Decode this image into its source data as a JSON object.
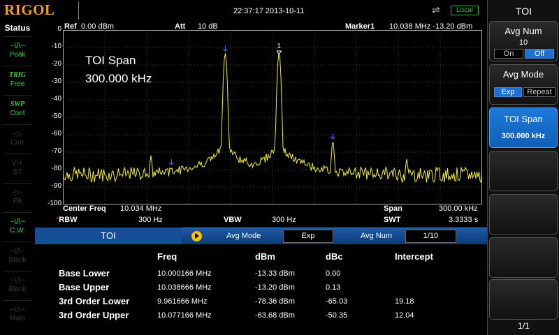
{
  "header": {
    "logo": "RIGOL",
    "datetime": "22:37:17  2013-10-11",
    "usb_icon": "usb-icon",
    "local_badge": "Local"
  },
  "status_panel": {
    "title": "Status",
    "items": [
      {
        "icon": "~\\/\\~",
        "label": "Peak",
        "state": "on"
      },
      {
        "icon": "TRIG",
        "label": "Free",
        "state": "on"
      },
      {
        "icon": "SWP",
        "label": "Cont",
        "state": "on"
      },
      {
        "icon": "-◇-",
        "label": "Corr",
        "state": "off"
      },
      {
        "icon": "\\/\\+",
        "label": "ST",
        "state": "off"
      },
      {
        "icon": "-▷-",
        "label": "PA",
        "state": "off"
      },
      {
        "icon": "~\\/\\~",
        "label": "C.W.",
        "state": "on"
      },
      {
        "icon": "~\\/\\~",
        "label": "Blank",
        "state": "off"
      },
      {
        "icon": "~\\/\\~",
        "label": "Blank",
        "state": "off"
      },
      {
        "icon": "~\\/\\~",
        "label": "Math",
        "state": "off"
      }
    ]
  },
  "display": {
    "ref_label": "Ref",
    "ref_value": "0.00 dBm",
    "att_label": "Att",
    "att_value": "10 dB",
    "marker_label": "Marker1",
    "marker_value": "10.038 MHz  -13.20 dBm",
    "toi_span_label": "TOI Span",
    "toi_span_value": "300.000 kHz",
    "y_ticks": [
      "0",
      "-10",
      "-20",
      "-30",
      "-40",
      "-50",
      "-60",
      "-70",
      "-80",
      "-90",
      "-100"
    ],
    "marker_number": "1"
  },
  "params": {
    "center_freq_label": "Center Freq",
    "center_freq_value": "10.034 MHz",
    "span_label": "Span",
    "span_value": "300.00 kHz",
    "rbw_label": "RBW",
    "rbw_star": "*",
    "rbw_value": "300 Hz",
    "vbw_label": "VBW",
    "vbw_value": "300 Hz",
    "swt_label": "SWT",
    "swt_value": "3.3333 s"
  },
  "toi_panel": {
    "title": "TOI",
    "avg_mode_label": "Avg Mode",
    "avg_mode_value": "Exp",
    "avg_num_label": "Avg Num",
    "avg_num_value": "1/10",
    "headers": [
      "Freq",
      "dBm",
      "dBc",
      "Intercept"
    ],
    "rows": [
      {
        "label": "Base Lower",
        "freq": "10.000166 MHz",
        "dbm": "-13.33 dBm",
        "dbc": "0.00",
        "intercept": ""
      },
      {
        "label": "Base Upper",
        "freq": "10.038666 MHz",
        "dbm": "-13.20 dBm",
        "dbc": "0.13",
        "intercept": ""
      },
      {
        "label": "3rd Order Lower",
        "freq": "9.961666 MHz",
        "dbm": "-78.36 dBm",
        "dbc": "-65.03",
        "intercept": "19.18"
      },
      {
        "label": "3rd Order Upper",
        "freq": "10.077166 MHz",
        "dbm": "-63.68 dBm",
        "dbc": "-50.35",
        "intercept": "12.04"
      }
    ]
  },
  "menu": {
    "title": "TOI",
    "avg_num": {
      "title": "Avg Num",
      "value": "10",
      "on": "On",
      "off": "Off",
      "selected": "Off"
    },
    "avg_mode": {
      "title": "Avg Mode",
      "opt1": "Exp",
      "opt2": "Repeat",
      "selected": "Exp"
    },
    "toi_span": {
      "title": "TOI Span",
      "value": "300.000 kHz"
    },
    "page": "1/1"
  },
  "chart_data": {
    "type": "line",
    "ylim": [
      -100,
      0
    ],
    "xlim_khz": [
      9884,
      10184
    ],
    "noise_floor_dbm": -83,
    "peaks": [
      {
        "freq_khz": 10000.166,
        "dbm": -13.33
      },
      {
        "freq_khz": 10038.666,
        "dbm": -13.2
      },
      {
        "freq_khz": 9961.666,
        "dbm": -78.36
      },
      {
        "freq_khz": 10077.166,
        "dbm": -63.68
      },
      {
        "freq_khz": 9947,
        "dbm": -72
      },
      {
        "freq_khz": 10130,
        "dbm": -74
      }
    ],
    "markers_khz": [
      9961.666,
      10000.166,
      10038.666,
      10077.166
    ],
    "trace_color": "#f5f02a",
    "grid": true
  }
}
